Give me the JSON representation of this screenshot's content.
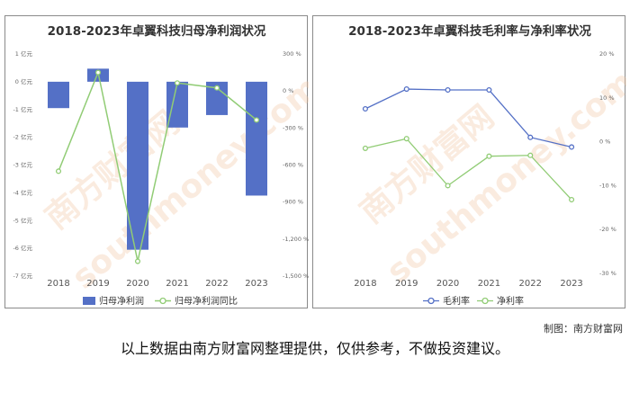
{
  "chart_data": [
    {
      "type": "bar+line",
      "title": "2018-2023年卓翼科技归母净利润状况",
      "categories": [
        "2018",
        "2019",
        "2020",
        "2021",
        "2022",
        "2023"
      ],
      "left_axis": {
        "unit": "亿元",
        "ticks": [
          "1 亿元",
          "0 亿元",
          "-1 亿元",
          "-2 亿元",
          "-3 亿元",
          "-4 亿元",
          "-5 亿元",
          "-6 亿元",
          "-7 亿元"
        ],
        "ylim": [
          -7,
          1
        ]
      },
      "right_axis": {
        "unit": "%",
        "ticks": [
          "300 %",
          "0 %",
          "-300 %",
          "-600 %",
          "-900 %",
          "-1,200 %",
          "-1,500 %"
        ],
        "ylim": [
          -1500,
          300
        ]
      },
      "series": [
        {
          "name": "归母净利润",
          "kind": "bar",
          "axis": "left",
          "color": "#5470c6",
          "values": [
            -0.95,
            0.47,
            -6.05,
            -1.65,
            -1.2,
            -4.1
          ]
        },
        {
          "name": "归母净利润同比",
          "kind": "line",
          "axis": "right",
          "color": "#91cc75",
          "values": [
            -650,
            150,
            -1380,
            65,
            25,
            -235
          ]
        }
      ],
      "legend_position": "bottom"
    },
    {
      "type": "line",
      "title": "2018-2023年卓翼科技毛利率与净利率状况",
      "categories": [
        "2018",
        "2019",
        "2020",
        "2021",
        "2022",
        "2023"
      ],
      "right_axis": {
        "unit": "%",
        "ticks": [
          "20 %",
          "10 %",
          "0 %",
          "-10 %",
          "-20 %",
          "-30 %"
        ],
        "ylim": [
          -30,
          20
        ]
      },
      "series": [
        {
          "name": "毛利率",
          "kind": "line",
          "color": "#5470c6",
          "values": [
            7.5,
            12,
            11.8,
            11.8,
            1,
            -1.2
          ]
        },
        {
          "name": "净利率",
          "kind": "line",
          "color": "#91cc75",
          "values": [
            -1.5,
            0.7,
            -10,
            -3.3,
            -3.1,
            -13.2
          ]
        }
      ],
      "legend_position": "bottom"
    }
  ],
  "watermark": {
    "cn": "南方财富网",
    "en": "southmoney.com"
  },
  "source_credit": "制图：南方财富网",
  "disclaimer": "以上数据由南方财富网整理提供，仅供参考，不做投资建议。"
}
